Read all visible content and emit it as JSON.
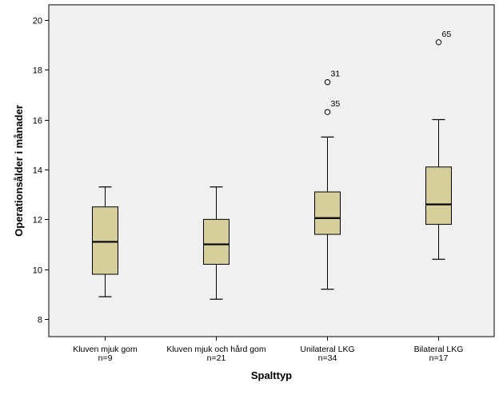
{
  "chart_data": {
    "type": "boxplot",
    "title": "",
    "xlabel": "Spalttyp",
    "ylabel": "Operationsålder i månader",
    "ylim": [
      7.3,
      20.6
    ],
    "yticks": [
      8,
      10,
      12,
      14,
      16,
      18,
      20
    ],
    "grid": false,
    "colors": {
      "plot_background": "#f0f0f0",
      "box_fill": "#d6cf9b",
      "stroke": "#000000"
    },
    "categories": [
      {
        "label": "Kluven mjuk gom",
        "n_label": "n=9",
        "whisker_low": 8.9,
        "q1": 9.8,
        "median": 11.1,
        "q3": 12.5,
        "whisker_high": 13.3,
        "outliers": []
      },
      {
        "label": "Kluven mjuk och hård gom",
        "n_label": "n=21",
        "whisker_low": 8.8,
        "q1": 10.2,
        "median": 11.0,
        "q3": 12.0,
        "whisker_high": 13.3,
        "outliers": []
      },
      {
        "label": "Unilateral LKG",
        "n_label": "n=34",
        "whisker_low": 9.2,
        "q1": 11.4,
        "median": 12.05,
        "q3": 13.1,
        "whisker_high": 15.3,
        "outliers": [
          {
            "value": 17.5,
            "label": "31"
          },
          {
            "value": 16.3,
            "label": "35"
          }
        ]
      },
      {
        "label": "Bilateral LKG",
        "n_label": "n=17",
        "whisker_low": 10.4,
        "q1": 11.8,
        "median": 12.6,
        "q3": 14.1,
        "whisker_high": 16.0,
        "outliers": [
          {
            "value": 19.1,
            "label": "65"
          }
        ]
      }
    ]
  }
}
